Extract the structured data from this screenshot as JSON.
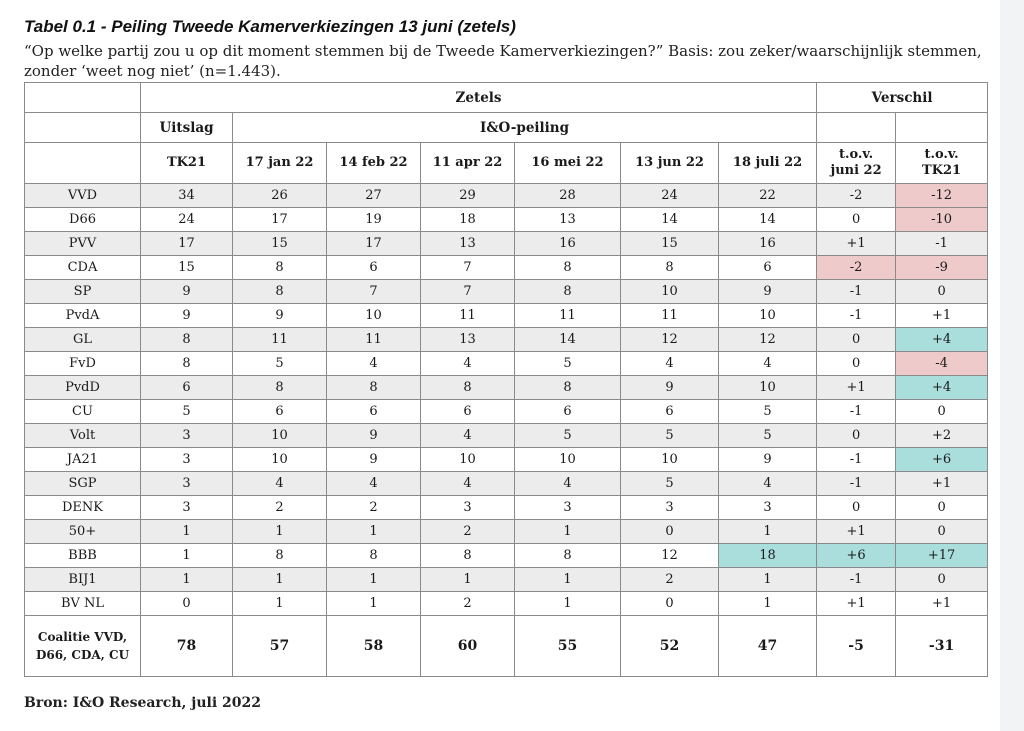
{
  "title": "Tabel 0.1 - Peiling Tweede Kamerverkiezingen 13 juni (zetels)",
  "subtitle": "“Op welke partij zou u op dit moment stemmen bij de Tweede Kamerverkiezingen?” Basis: zou zeker/waarschijnlijk stemmen, zonder ‘weet nog niet’ (n=1.443).",
  "header": {
    "zetels": "Zetels",
    "verschil": "Verschil",
    "uitslag": "Uitslag",
    "peiling": "I&O-peiling",
    "tk21": "TK21",
    "dates": [
      "17 jan 22",
      "14 feb 22",
      "11 apr 22",
      "16 mei 22",
      "13 jun 22",
      "18 juli 22"
    ],
    "diff1_line1": "t.o.v.",
    "diff1_line2": "juni 22",
    "diff2_line1": "t.o.v.",
    "diff2_line2": "TK21"
  },
  "rows": [
    {
      "party": "VVD",
      "values": [
        "34",
        "26",
        "27",
        "29",
        "28",
        "24",
        "22"
      ],
      "d_jun": "-2",
      "d_tk": "-12"
    },
    {
      "party": "D66",
      "values": [
        "24",
        "17",
        "19",
        "18",
        "13",
        "14",
        "14"
      ],
      "d_jun": "0",
      "d_tk": "-10"
    },
    {
      "party": "PVV",
      "values": [
        "17",
        "15",
        "17",
        "13",
        "16",
        "15",
        "16"
      ],
      "d_jun": "+1",
      "d_tk": "-1"
    },
    {
      "party": "CDA",
      "values": [
        "15",
        "8",
        "6",
        "7",
        "8",
        "8",
        "6"
      ],
      "d_jun": "-2",
      "d_tk": "-9"
    },
    {
      "party": "SP",
      "values": [
        "9",
        "8",
        "7",
        "7",
        "8",
        "10",
        "9"
      ],
      "d_jun": "-1",
      "d_tk": "0"
    },
    {
      "party": "PvdA",
      "values": [
        "9",
        "9",
        "10",
        "11",
        "11",
        "11",
        "10"
      ],
      "d_jun": "-1",
      "d_tk": "+1"
    },
    {
      "party": "GL",
      "values": [
        "8",
        "11",
        "11",
        "13",
        "14",
        "12",
        "12"
      ],
      "d_jun": "0",
      "d_tk": "+4"
    },
    {
      "party": "FvD",
      "values": [
        "8",
        "5",
        "4",
        "4",
        "5",
        "4",
        "4"
      ],
      "d_jun": "0",
      "d_tk": "-4"
    },
    {
      "party": "PvdD",
      "values": [
        "6",
        "8",
        "8",
        "8",
        "8",
        "9",
        "10"
      ],
      "d_jun": "+1",
      "d_tk": "+4"
    },
    {
      "party": "CU",
      "values": [
        "5",
        "6",
        "6",
        "6",
        "6",
        "6",
        "5"
      ],
      "d_jun": "-1",
      "d_tk": "0"
    },
    {
      "party": "Volt",
      "values": [
        "3",
        "10",
        "9",
        "4",
        "5",
        "5",
        "5"
      ],
      "d_jun": "0",
      "d_tk": "+2"
    },
    {
      "party": "JA21",
      "values": [
        "3",
        "10",
        "9",
        "10",
        "10",
        "10",
        "9"
      ],
      "d_jun": "-1",
      "d_tk": "+6"
    },
    {
      "party": "SGP",
      "values": [
        "3",
        "4",
        "4",
        "4",
        "4",
        "5",
        "4"
      ],
      "d_jun": "-1",
      "d_tk": "+1"
    },
    {
      "party": "DENK",
      "values": [
        "3",
        "2",
        "2",
        "3",
        "3",
        "3",
        "3"
      ],
      "d_jun": "0",
      "d_tk": "0"
    },
    {
      "party": "50+",
      "values": [
        "1",
        "1",
        "1",
        "2",
        "1",
        "0",
        "1"
      ],
      "d_jun": "+1",
      "d_tk": "0"
    },
    {
      "party": "BBB",
      "values": [
        "1",
        "8",
        "8",
        "8",
        "8",
        "12",
        "18"
      ],
      "d_jun": "+6",
      "d_tk": "+17"
    },
    {
      "party": "BIJ1",
      "values": [
        "1",
        "1",
        "1",
        "1",
        "1",
        "2",
        "1"
      ],
      "d_jun": "-1",
      "d_tk": "0"
    },
    {
      "party": "BV NL",
      "values": [
        "0",
        "1",
        "1",
        "2",
        "1",
        "0",
        "1"
      ],
      "d_jun": "+1",
      "d_tk": "+1"
    }
  ],
  "coalition": {
    "label": "Coalitie VVD, D66, CDA, CU",
    "values": [
      "78",
      "57",
      "58",
      "60",
      "55",
      "52",
      "47"
    ],
    "d_jun": "-5",
    "d_tk": "-31"
  },
  "highlights": {
    "negative_color": "#eecaca",
    "positive_color": "#a9dedd",
    "cells": [
      {
        "row": 0,
        "col": "d_tk",
        "tone": "negative"
      },
      {
        "row": 1,
        "col": "d_tk",
        "tone": "negative"
      },
      {
        "row": 3,
        "col": "d_jun",
        "tone": "negative"
      },
      {
        "row": 3,
        "col": "d_tk",
        "tone": "negative"
      },
      {
        "row": 6,
        "col": "d_tk",
        "tone": "positive"
      },
      {
        "row": 7,
        "col": "d_tk",
        "tone": "negative"
      },
      {
        "row": 8,
        "col": "d_tk",
        "tone": "positive"
      },
      {
        "row": 11,
        "col": "d_tk",
        "tone": "positive"
      },
      {
        "row": 15,
        "col": "v6",
        "tone": "positive"
      },
      {
        "row": 15,
        "col": "d_jun",
        "tone": "positive"
      },
      {
        "row": 15,
        "col": "d_tk",
        "tone": "positive"
      }
    ]
  },
  "source": "Bron: I&O Research, juli 2022"
}
